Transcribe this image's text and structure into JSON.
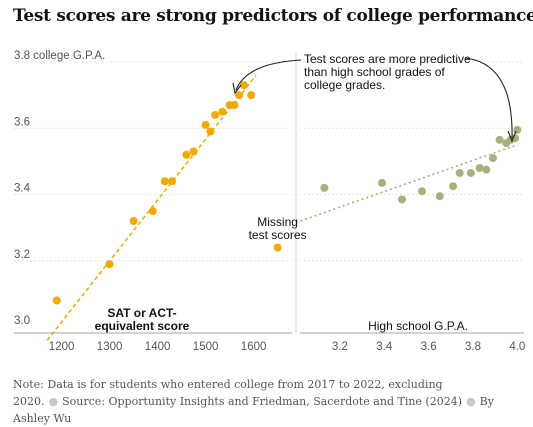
{
  "title": "Test scores are strong predictors of college performance",
  "footnote": {
    "note": "Note: Data is for students who entered college from 2017 to 2022, excluding 2020.",
    "source": "Source: Opportunity Insights and Friedman, Sacerdote and Tine (2024)",
    "byline": "By Ashley Wu"
  },
  "colors": {
    "sat": "#f5a800",
    "hs": "#a6b27c",
    "axis": "#b8b8b8",
    "text": "#121212",
    "muted": "#555555"
  },
  "chart_data": [
    {
      "type": "scatter",
      "xlabel": "SAT or ACT-equivalent score",
      "ylabel": "3.8 college G.P.A.",
      "xlim": [
        1155,
        1680
      ],
      "ylim": [
        3.0,
        3.8
      ],
      "xticks": [
        1200,
        1300,
        1400,
        1500,
        1600
      ],
      "yticks": [
        3.0,
        3.2,
        3.4,
        3.6,
        3.8
      ],
      "ytick_labels": [
        "3.0",
        "3.2",
        "3.4",
        "3.6",
        "3.8 college G.P.A."
      ],
      "trendline": {
        "x": [
          1170,
          1605
        ],
        "y": [
          2.96,
          3.76
        ],
        "style": "dashed"
      },
      "points": [
        {
          "x": 1190,
          "y": 3.08
        },
        {
          "x": 1300,
          "y": 3.19
        },
        {
          "x": 1350,
          "y": 3.32
        },
        {
          "x": 1390,
          "y": 3.35
        },
        {
          "x": 1415,
          "y": 3.44
        },
        {
          "x": 1430,
          "y": 3.44
        },
        {
          "x": 1460,
          "y": 3.52
        },
        {
          "x": 1475,
          "y": 3.53
        },
        {
          "x": 1500,
          "y": 3.61
        },
        {
          "x": 1510,
          "y": 3.59
        },
        {
          "x": 1520,
          "y": 3.64
        },
        {
          "x": 1535,
          "y": 3.65
        },
        {
          "x": 1550,
          "y": 3.67
        },
        {
          "x": 1560,
          "y": 3.67
        },
        {
          "x": 1570,
          "y": 3.7
        },
        {
          "x": 1580,
          "y": 3.73
        },
        {
          "x": 1595,
          "y": 3.7
        }
      ],
      "missing": {
        "x": 1650,
        "y": 3.24,
        "label": [
          "Missing",
          "test scores"
        ]
      },
      "axis_title": [
        "SAT or ACT-",
        "equivalent score"
      ]
    },
    {
      "type": "scatter",
      "xlabel": "High school G.P.A.",
      "xlim": [
        3.02,
        4.03
      ],
      "ylim": [
        3.0,
        3.8
      ],
      "xticks": [
        3.2,
        3.4,
        3.6,
        3.8,
        4.0
      ],
      "trendline": {
        "x": [
          3.0,
          4.0
        ],
        "y": [
          3.315,
          3.55
        ],
        "style": "dotted"
      },
      "points": [
        {
          "x": 3.13,
          "y": 3.42
        },
        {
          "x": 3.39,
          "y": 3.435
        },
        {
          "x": 3.48,
          "y": 3.385
        },
        {
          "x": 3.57,
          "y": 3.41
        },
        {
          "x": 3.65,
          "y": 3.395
        },
        {
          "x": 3.71,
          "y": 3.425
        },
        {
          "x": 3.74,
          "y": 3.465
        },
        {
          "x": 3.79,
          "y": 3.465
        },
        {
          "x": 3.83,
          "y": 3.48
        },
        {
          "x": 3.86,
          "y": 3.475
        },
        {
          "x": 3.89,
          "y": 3.51
        },
        {
          "x": 3.92,
          "y": 3.565
        },
        {
          "x": 3.95,
          "y": 3.555
        },
        {
          "x": 3.97,
          "y": 3.565
        },
        {
          "x": 3.99,
          "y": 3.57
        },
        {
          "x": 4.0,
          "y": 3.595
        }
      ],
      "axis_title": "High school G.P.A."
    }
  ],
  "annotation": [
    "Test scores are more predictive",
    "than high school grades of",
    "college grades."
  ]
}
